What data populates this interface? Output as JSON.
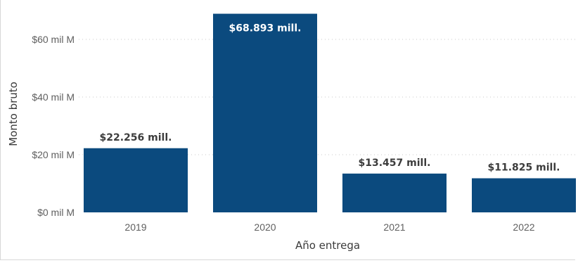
{
  "chart_data": {
    "type": "bar",
    "categories": [
      "2019",
      "2020",
      "2021",
      "2022"
    ],
    "values": [
      22.256,
      68.893,
      13.457,
      11.825
    ],
    "data_labels": [
      "$22.256 mill.",
      "$68.893 mill.",
      "$13.457 mill.",
      "$11.825 mill."
    ],
    "xlabel": "Año entrega",
    "ylabel": "Monto bruto",
    "y_ticks": [
      0,
      20,
      40,
      60
    ],
    "y_tick_labels": [
      "$0 mil M",
      "$20 mil M",
      "$40 mil M",
      "$60 mil M"
    ],
    "ylim": [
      0,
      70
    ],
    "grid": true,
    "colors": {
      "bar": "#0b4a7e",
      "label_outside": "#3c3c3c",
      "label_inside": "#ffffff"
    }
  }
}
